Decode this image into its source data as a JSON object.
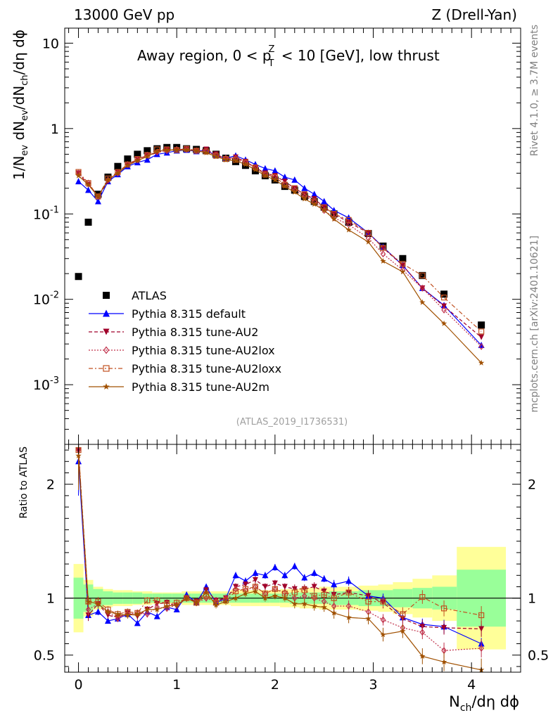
{
  "header": {
    "left": "13000 GeV pp",
    "right": "Z (Drell-Yan)"
  },
  "chart_data": [
    {
      "type": "scatter",
      "panel": "main",
      "title": "Away region, 0 < p_T^Z < 10 [GeV], low thrust",
      "ylabel": "1/N_ev dN_ev/dN_ch/dη dϕ",
      "yscale": "log",
      "ylim": [
        0.0002,
        15
      ],
      "xlim": [
        -0.14,
        4.5
      ],
      "y_ticks": [
        {
          "v": 0.001,
          "label": "10^-3"
        },
        {
          "v": 0.01,
          "label": "10^-2"
        },
        {
          "v": 0.1,
          "label": "10^-1"
        },
        {
          "v": 1,
          "label": "1"
        },
        {
          "v": 10,
          "label": "10"
        }
      ],
      "reference": "(ATLAS_2019_I1736531)",
      "series": [
        {
          "name": "ATLAS",
          "color": "#000000",
          "marker": "square",
          "x": [
            0,
            0.1,
            0.2,
            0.3,
            0.4,
            0.5,
            0.6,
            0.7,
            0.8,
            0.9,
            1.0,
            1.1,
            1.2,
            1.3,
            1.4,
            1.5,
            1.6,
            1.7,
            1.8,
            1.9,
            2.0,
            2.1,
            2.2,
            2.3,
            2.4,
            2.5,
            2.6,
            2.75,
            2.95,
            3.1,
            3.3,
            3.5,
            3.72,
            4.1
          ],
          "y": [
            0.0185,
            0.08,
            0.17,
            0.27,
            0.36,
            0.44,
            0.5,
            0.55,
            0.58,
            0.6,
            0.6,
            0.58,
            0.57,
            0.55,
            0.5,
            0.45,
            0.41,
            0.37,
            0.32,
            0.28,
            0.25,
            0.21,
            0.19,
            0.16,
            0.14,
            0.12,
            0.1,
            0.08,
            0.059,
            0.042,
            0.03,
            0.019,
            0.0115,
            0.005
          ]
        },
        {
          "name": "Pythia 8.315 default",
          "color": "#0000ff",
          "marker": "triangle-up",
          "line": "solid",
          "x": [
            0,
            0.1,
            0.2,
            0.3,
            0.4,
            0.5,
            0.6,
            0.7,
            0.8,
            0.9,
            1.0,
            1.1,
            1.2,
            1.3,
            1.4,
            1.5,
            1.6,
            1.7,
            1.8,
            1.9,
            2.0,
            2.1,
            2.2,
            2.3,
            2.4,
            2.5,
            2.6,
            2.75,
            2.95,
            3.1,
            3.3,
            3.5,
            3.72,
            4.1
          ],
          "y": [
            0.24,
            0.19,
            0.14,
            0.24,
            0.29,
            0.36,
            0.4,
            0.43,
            0.5,
            0.52,
            0.55,
            0.56,
            0.54,
            0.56,
            0.48,
            0.45,
            0.48,
            0.43,
            0.38,
            0.34,
            0.32,
            0.27,
            0.25,
            0.2,
            0.17,
            0.14,
            0.11,
            0.09,
            0.06,
            0.041,
            0.025,
            0.0135,
            0.0085,
            0.0029
          ]
        },
        {
          "name": "Pythia 8.315 tune-AU2",
          "color": "#a0002a",
          "marker": "triangle-down",
          "line": "dashed",
          "x": [
            0,
            0.1,
            0.2,
            0.3,
            0.4,
            0.5,
            0.6,
            0.7,
            0.8,
            0.9,
            1.0,
            1.1,
            1.2,
            1.3,
            1.4,
            1.5,
            1.6,
            1.7,
            1.8,
            1.9,
            2.0,
            2.1,
            2.2,
            2.3,
            2.4,
            2.5,
            2.6,
            2.75,
            2.95,
            3.1,
            3.3,
            3.5,
            3.72,
            4.1
          ],
          "y": [
            0.3,
            0.22,
            0.16,
            0.24,
            0.31,
            0.37,
            0.44,
            0.48,
            0.52,
            0.56,
            0.56,
            0.58,
            0.55,
            0.57,
            0.5,
            0.44,
            0.46,
            0.41,
            0.35,
            0.3,
            0.28,
            0.24,
            0.2,
            0.17,
            0.15,
            0.12,
            0.1,
            0.08,
            0.06,
            0.04,
            0.025,
            0.0135,
            0.0083,
            0.0036
          ]
        },
        {
          "name": "Pythia 8.315 tune-AU2lox",
          "color": "#c0304a",
          "marker": "diamond-open",
          "line": "dotted",
          "x": [
            0,
            0.1,
            0.2,
            0.3,
            0.4,
            0.5,
            0.6,
            0.7,
            0.8,
            0.9,
            1.0,
            1.1,
            1.2,
            1.3,
            1.4,
            1.5,
            1.6,
            1.7,
            1.8,
            1.9,
            2.0,
            2.1,
            2.2,
            2.3,
            2.4,
            2.5,
            2.6,
            2.75,
            2.95,
            3.1,
            3.3,
            3.5,
            3.72,
            4.1
          ],
          "y": [
            0.3,
            0.23,
            0.16,
            0.25,
            0.3,
            0.38,
            0.43,
            0.49,
            0.53,
            0.55,
            0.57,
            0.57,
            0.55,
            0.54,
            0.49,
            0.45,
            0.45,
            0.4,
            0.35,
            0.29,
            0.27,
            0.22,
            0.19,
            0.16,
            0.14,
            0.11,
            0.09,
            0.075,
            0.052,
            0.034,
            0.022,
            0.0135,
            0.0075,
            0.0028
          ]
        },
        {
          "name": "Pythia 8.315 tune-AU2loxx",
          "color": "#c05020",
          "marker": "square-open",
          "line": "dashdot",
          "x": [
            0,
            0.1,
            0.2,
            0.3,
            0.4,
            0.5,
            0.6,
            0.7,
            0.8,
            0.9,
            1.0,
            1.1,
            1.2,
            1.3,
            1.4,
            1.5,
            1.6,
            1.7,
            1.8,
            1.9,
            2.0,
            2.1,
            2.2,
            2.3,
            2.4,
            2.5,
            2.6,
            2.75,
            2.95,
            3.1,
            3.3,
            3.5,
            3.72,
            4.1
          ],
          "y": [
            0.31,
            0.23,
            0.16,
            0.26,
            0.31,
            0.38,
            0.44,
            0.49,
            0.57,
            0.57,
            0.56,
            0.58,
            0.55,
            0.54,
            0.48,
            0.44,
            0.43,
            0.4,
            0.35,
            0.29,
            0.27,
            0.22,
            0.2,
            0.17,
            0.14,
            0.12,
            0.1,
            0.085,
            0.06,
            0.04,
            0.026,
            0.019,
            0.0105,
            0.0042
          ]
        },
        {
          "name": "Pythia 8.315 tune-AU2m",
          "color": "#a05000",
          "marker": "star",
          "line": "solid",
          "x": [
            0,
            0.1,
            0.2,
            0.3,
            0.4,
            0.5,
            0.6,
            0.7,
            0.8,
            0.9,
            1.0,
            1.1,
            1.2,
            1.3,
            1.4,
            1.5,
            1.6,
            1.7,
            1.8,
            1.9,
            2.0,
            2.1,
            2.2,
            2.3,
            2.4,
            2.5,
            2.6,
            2.75,
            2.95,
            3.1,
            3.3,
            3.5,
            3.72,
            4.1
          ],
          "y": [
            0.28,
            0.22,
            0.16,
            0.25,
            0.3,
            0.37,
            0.42,
            0.47,
            0.54,
            0.56,
            0.56,
            0.56,
            0.55,
            0.52,
            0.47,
            0.43,
            0.42,
            0.38,
            0.33,
            0.28,
            0.25,
            0.21,
            0.18,
            0.15,
            0.13,
            0.11,
            0.087,
            0.065,
            0.047,
            0.028,
            0.021,
            0.0092,
            0.0052,
            0.0018
          ]
        }
      ]
    },
    {
      "type": "line",
      "panel": "ratio",
      "ylabel": "Ratio to ATLAS",
      "xlabel": "N_ch/dη dϕ",
      "ylim": [
        0.35,
        2.35
      ],
      "xlim": [
        -0.14,
        4.5
      ],
      "x_ticks": [
        0,
        1,
        2,
        3,
        4
      ],
      "y_ticks": [
        0.5,
        1,
        2
      ],
      "bands": {
        "x_edges": [
          -0.05,
          0.05,
          0.15,
          0.25,
          0.35,
          0.45,
          0.55,
          0.65,
          0.75,
          0.85,
          0.95,
          1.05,
          1.15,
          1.25,
          1.35,
          1.45,
          1.55,
          1.65,
          1.75,
          1.85,
          1.95,
          2.05,
          2.15,
          2.25,
          2.35,
          2.45,
          2.55,
          2.65,
          2.85,
          3.05,
          3.2,
          3.4,
          3.6,
          3.85,
          4.35
        ],
        "stat_half_width": [
          0.18,
          0.12,
          0.08,
          0.06,
          0.05,
          0.05,
          0.05,
          0.04,
          0.04,
          0.04,
          0.04,
          0.04,
          0.04,
          0.04,
          0.04,
          0.04,
          0.04,
          0.04,
          0.04,
          0.04,
          0.04,
          0.04,
          0.05,
          0.05,
          0.05,
          0.05,
          0.06,
          0.06,
          0.07,
          0.07,
          0.08,
          0.09,
          0.1,
          0.25
        ],
        "total_half_width": [
          0.3,
          0.16,
          0.1,
          0.08,
          0.07,
          0.07,
          0.06,
          0.06,
          0.05,
          0.05,
          0.05,
          0.06,
          0.06,
          0.06,
          0.06,
          0.06,
          0.07,
          0.07,
          0.07,
          0.07,
          0.07,
          0.08,
          0.08,
          0.09,
          0.09,
          0.1,
          0.1,
          0.1,
          0.11,
          0.12,
          0.14,
          0.17,
          0.2,
          0.45
        ],
        "stat_color": "#99ff99",
        "total_color": "#ffff99"
      },
      "x": [
        0,
        0.1,
        0.2,
        0.3,
        0.4,
        0.5,
        0.6,
        0.7,
        0.8,
        0.9,
        1.0,
        1.1,
        1.2,
        1.3,
        1.4,
        1.5,
        1.6,
        1.7,
        1.8,
        1.9,
        2.0,
        2.1,
        2.2,
        2.3,
        2.4,
        2.5,
        2.6,
        2.75,
        2.95,
        3.1,
        3.3,
        3.5,
        3.72,
        4.1
      ],
      "series": [
        {
          "name": "Pythia 8.315 default",
          "color": "#0000ff",
          "marker": "triangle-up",
          "line": "solid",
          "values": [
            2.2,
            0.85,
            0.88,
            0.8,
            0.82,
            0.86,
            0.78,
            0.88,
            0.84,
            0.92,
            0.9,
            1.03,
            0.96,
            1.1,
            0.96,
            1.0,
            1.2,
            1.15,
            1.22,
            1.2,
            1.27,
            1.2,
            1.28,
            1.18,
            1.22,
            1.17,
            1.12,
            1.15,
            1.02,
            1.0,
            0.83,
            0.77,
            0.75,
            0.6
          ],
          "err": [
            0.3,
            0.05,
            0.03,
            0.02,
            0.02,
            0.02,
            0.02,
            0.02,
            0.02,
            0.02,
            0.02,
            0.02,
            0.02,
            0.02,
            0.02,
            0.02,
            0.03,
            0.03,
            0.03,
            0.03,
            0.03,
            0.03,
            0.03,
            0.03,
            0.03,
            0.03,
            0.04,
            0.04,
            0.04,
            0.04,
            0.05,
            0.05,
            0.06,
            0.05
          ]
        },
        {
          "name": "Pythia 8.315 tune-AU2",
          "color": "#a0002a",
          "marker": "triangle-down",
          "line": "dashed",
          "values": [
            2.3,
            0.85,
            0.95,
            0.85,
            0.83,
            0.87,
            0.84,
            0.9,
            0.95,
            0.96,
            0.93,
            1.0,
            0.97,
            1.07,
            0.98,
            1.0,
            1.1,
            1.12,
            1.16,
            1.1,
            1.13,
            1.1,
            1.08,
            1.08,
            1.1,
            1.06,
            1.03,
            1.05,
            1.02,
            0.96,
            0.82,
            0.75,
            0.74,
            0.73
          ],
          "err": [
            0.3,
            0.05,
            0.04,
            0.03,
            0.03,
            0.03,
            0.03,
            0.03,
            0.03,
            0.03,
            0.03,
            0.03,
            0.03,
            0.03,
            0.03,
            0.03,
            0.03,
            0.03,
            0.03,
            0.03,
            0.03,
            0.03,
            0.04,
            0.04,
            0.04,
            0.04,
            0.05,
            0.05,
            0.05,
            0.05,
            0.06,
            0.06,
            0.06,
            0.07
          ]
        },
        {
          "name": "Pythia 8.315 tune-AU2lox",
          "color": "#c0304a",
          "marker": "diamond-open",
          "line": "dotted",
          "values": [
            2.3,
            0.9,
            0.95,
            0.88,
            0.82,
            0.86,
            0.87,
            0.86,
            0.92,
            0.91,
            0.94,
            1.0,
            0.96,
            1.0,
            0.97,
            1.0,
            1.08,
            1.07,
            1.1,
            1.04,
            1.08,
            1.05,
            1.0,
            1.02,
            1.0,
            0.97,
            0.93,
            0.93,
            0.88,
            0.81,
            0.74,
            0.7,
            0.54,
            0.56
          ],
          "err": [
            0.3,
            0.05,
            0.04,
            0.03,
            0.03,
            0.03,
            0.03,
            0.03,
            0.03,
            0.03,
            0.03,
            0.03,
            0.03,
            0.03,
            0.03,
            0.03,
            0.03,
            0.03,
            0.03,
            0.03,
            0.03,
            0.03,
            0.04,
            0.04,
            0.04,
            0.04,
            0.05,
            0.05,
            0.05,
            0.05,
            0.06,
            0.06,
            0.07,
            0.08
          ]
        },
        {
          "name": "Pythia 8.315 tune-AU2loxx",
          "color": "#c05020",
          "marker": "square-open",
          "line": "dashdot",
          "values": [
            2.3,
            0.97,
            0.97,
            0.9,
            0.86,
            0.88,
            0.87,
            0.98,
            0.98,
            0.95,
            0.96,
            1.0,
            0.96,
            1.02,
            0.96,
            0.98,
            1.06,
            1.08,
            1.1,
            1.04,
            1.08,
            1.04,
            1.05,
            1.07,
            1.02,
            1.03,
            1.0,
            1.05,
            0.97,
            0.97,
            0.86,
            1.01,
            0.91,
            0.85
          ],
          "err": [
            0.3,
            0.05,
            0.04,
            0.03,
            0.03,
            0.03,
            0.03,
            0.03,
            0.03,
            0.03,
            0.03,
            0.03,
            0.03,
            0.03,
            0.03,
            0.03,
            0.03,
            0.03,
            0.03,
            0.03,
            0.03,
            0.03,
            0.04,
            0.04,
            0.04,
            0.04,
            0.05,
            0.05,
            0.05,
            0.05,
            0.06,
            0.06,
            0.07,
            0.08
          ]
        },
        {
          "name": "Pythia 8.315 tune-AU2m",
          "color": "#a05000",
          "marker": "star",
          "line": "solid",
          "values": [
            2.25,
            0.97,
            0.95,
            0.88,
            0.86,
            0.85,
            0.86,
            0.9,
            0.9,
            0.93,
            0.94,
            1.0,
            0.96,
            1.05,
            0.94,
            0.97,
            1.0,
            1.04,
            1.06,
            1.0,
            1.02,
            1.0,
            0.95,
            0.95,
            0.93,
            0.92,
            0.87,
            0.83,
            0.82,
            0.68,
            0.71,
            0.49,
            0.44,
            0.37
          ],
          "err": [
            0.3,
            0.05,
            0.04,
            0.03,
            0.03,
            0.03,
            0.03,
            0.03,
            0.03,
            0.03,
            0.03,
            0.03,
            0.03,
            0.03,
            0.03,
            0.03,
            0.03,
            0.03,
            0.03,
            0.03,
            0.03,
            0.03,
            0.04,
            0.04,
            0.04,
            0.04,
            0.05,
            0.05,
            0.05,
            0.06,
            0.06,
            0.07,
            0.08,
            0.1
          ]
        }
      ]
    }
  ],
  "side_labels": {
    "top": "Rivet 4.1.0, ≥ 3.7M events",
    "bottom": "mcplots.cern.ch [arXiv:2401.10621]"
  }
}
